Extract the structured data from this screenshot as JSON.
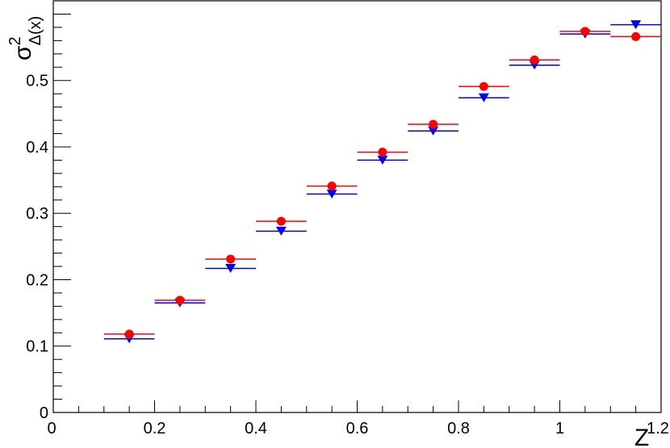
{
  "chart_data": {
    "type": "scatter",
    "title": "",
    "xlabel": "Z",
    "ylabel_main": "σ",
    "ylabel_sup": "2",
    "ylabel_sub": "Δ(x)",
    "xlim": [
      0,
      1.2
    ],
    "ylim": [
      0,
      0.62
    ],
    "xticks": [
      {
        "v": 0,
        "label": "0"
      },
      {
        "v": 0.2,
        "label": "0.2"
      },
      {
        "v": 0.4,
        "label": "0.4"
      },
      {
        "v": 0.6,
        "label": "0.6"
      },
      {
        "v": 0.8,
        "label": "0.8"
      },
      {
        "v": 1.0,
        "label": "1"
      },
      {
        "v": 1.2,
        "label": "1.2"
      }
    ],
    "yticks": [
      {
        "v": 0,
        "label": "0"
      },
      {
        "v": 0.1,
        "label": "0.1"
      },
      {
        "v": 0.2,
        "label": "0.2"
      },
      {
        "v": 0.3,
        "label": "0.3"
      },
      {
        "v": 0.4,
        "label": "0.4"
      },
      {
        "v": 0.5,
        "label": "0.5"
      }
    ],
    "grid": false,
    "bin_width": 0.1,
    "series": [
      {
        "marker": "triangle-down",
        "color": "#0000ff",
        "x": [
          0.15,
          0.25,
          0.35,
          0.45,
          0.55,
          0.65,
          0.75,
          0.85,
          0.95,
          1.05,
          1.15
        ],
        "y": [
          0.111,
          0.165,
          0.217,
          0.273,
          0.329,
          0.38,
          0.424,
          0.474,
          0.523,
          0.57,
          0.584
        ]
      },
      {
        "marker": "circle",
        "color": "#ff0000",
        "x": [
          0.15,
          0.25,
          0.35,
          0.45,
          0.55,
          0.65,
          0.75,
          0.85,
          0.95,
          1.05,
          1.15
        ],
        "y": [
          0.118,
          0.169,
          0.231,
          0.288,
          0.341,
          0.392,
          0.434,
          0.491,
          0.531,
          0.574,
          0.566
        ]
      }
    ]
  }
}
